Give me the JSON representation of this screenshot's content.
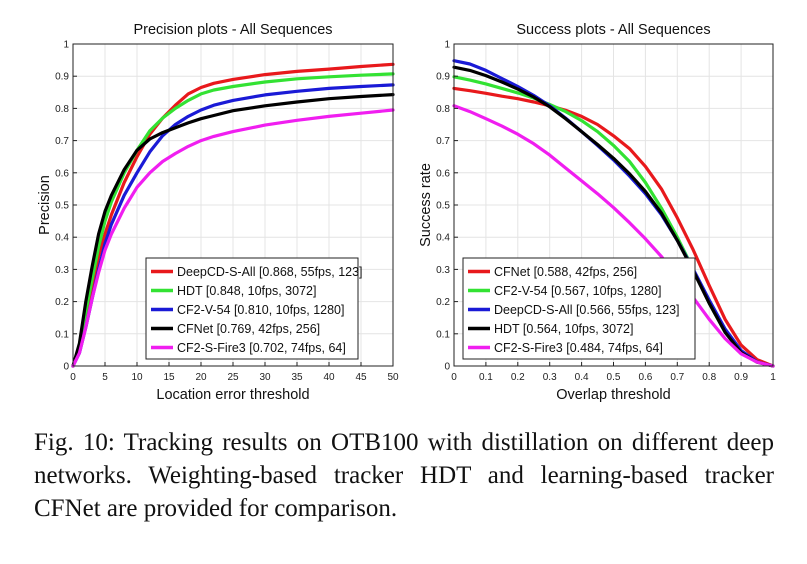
{
  "chart_data": [
    {
      "type": "line",
      "title": "Precision plots - All Sequences",
      "xlabel": "Location error threshold",
      "ylabel": "Precision",
      "xlim": [
        0,
        50
      ],
      "ylim": [
        0,
        1
      ],
      "xticks": [
        0,
        5,
        10,
        15,
        20,
        25,
        30,
        35,
        40,
        45,
        50
      ],
      "xtick_labels": [
        "0",
        "5",
        "10",
        "15",
        "20",
        "25",
        "30",
        "35",
        "40",
        "45",
        "50"
      ],
      "yticks": [
        0,
        0.1,
        0.2,
        0.3,
        0.4,
        0.5,
        0.6,
        0.7,
        0.8,
        0.9,
        1
      ],
      "ytick_labels": [
        "0",
        "0.1",
        "0.2",
        "0.3",
        "0.4",
        "0.5",
        "0.6",
        "0.7",
        "0.8",
        "0.9",
        "1"
      ],
      "grid": true,
      "legend_position": "bottom-right",
      "series": [
        {
          "name": "DeepCD-S-All [0.868, 55fps, 123]",
          "color": "#e8191c",
          "x": [
            0,
            1,
            2,
            3,
            4,
            5,
            6,
            8,
            10,
            12,
            14,
            16,
            18,
            20,
            22,
            25,
            30,
            35,
            40,
            45,
            50
          ],
          "y": [
            0,
            0.05,
            0.15,
            0.25,
            0.34,
            0.41,
            0.47,
            0.57,
            0.65,
            0.72,
            0.77,
            0.81,
            0.845,
            0.865,
            0.878,
            0.89,
            0.905,
            0.915,
            0.922,
            0.93,
            0.937
          ]
        },
        {
          "name": "HDT [0.848, 10fps, 3072]",
          "color": "#33e233",
          "x": [
            0,
            1,
            2,
            3,
            4,
            5,
            6,
            8,
            10,
            12,
            14,
            16,
            18,
            20,
            22,
            25,
            30,
            35,
            40,
            45,
            50
          ],
          "y": [
            0,
            0.06,
            0.17,
            0.27,
            0.37,
            0.45,
            0.51,
            0.6,
            0.67,
            0.73,
            0.77,
            0.8,
            0.825,
            0.845,
            0.857,
            0.868,
            0.882,
            0.892,
            0.898,
            0.903,
            0.907
          ]
        },
        {
          "name": "CF2-V-54 [0.810, 10fps, 1280]",
          "color": "#1a1ad6",
          "x": [
            0,
            1,
            2,
            3,
            4,
            5,
            6,
            8,
            10,
            12,
            14,
            16,
            18,
            20,
            22,
            25,
            30,
            35,
            40,
            45,
            50
          ],
          "y": [
            0,
            0.04,
            0.12,
            0.21,
            0.3,
            0.38,
            0.44,
            0.53,
            0.6,
            0.665,
            0.715,
            0.75,
            0.775,
            0.795,
            0.81,
            0.825,
            0.842,
            0.853,
            0.862,
            0.868,
            0.873
          ]
        },
        {
          "name": "CFNet [0.769, 42fps, 256]",
          "color": "#000000",
          "x": [
            0,
            1,
            2,
            3,
            4,
            5,
            6,
            8,
            10,
            12,
            14,
            16,
            18,
            20,
            22,
            25,
            30,
            35,
            40,
            45,
            50
          ],
          "y": [
            0,
            0.07,
            0.2,
            0.31,
            0.41,
            0.48,
            0.53,
            0.61,
            0.67,
            0.705,
            0.725,
            0.74,
            0.755,
            0.768,
            0.778,
            0.793,
            0.808,
            0.82,
            0.83,
            0.837,
            0.843
          ]
        },
        {
          "name": "CF2-S-Fire3 [0.702, 74fps, 64]",
          "color": "#f01ef0",
          "x": [
            0,
            1,
            2,
            3,
            4,
            5,
            6,
            8,
            10,
            12,
            14,
            16,
            18,
            20,
            22,
            25,
            30,
            35,
            40,
            45,
            50
          ],
          "y": [
            0,
            0.04,
            0.12,
            0.21,
            0.29,
            0.36,
            0.41,
            0.49,
            0.555,
            0.6,
            0.635,
            0.66,
            0.682,
            0.7,
            0.713,
            0.728,
            0.748,
            0.763,
            0.775,
            0.785,
            0.795
          ]
        }
      ]
    },
    {
      "type": "line",
      "title": "Success plots - All Sequences",
      "xlabel": "Overlap threshold",
      "ylabel": "Success rate",
      "xlim": [
        0,
        1
      ],
      "ylim": [
        0,
        1
      ],
      "xticks": [
        0,
        0.1,
        0.2,
        0.3,
        0.4,
        0.5,
        0.6,
        0.7,
        0.8,
        0.9,
        1
      ],
      "xtick_labels": [
        "0",
        "0.1",
        "0.2",
        "0.3",
        "0.4",
        "0.5",
        "0.6",
        "0.7",
        "0.8",
        "0.9",
        "1"
      ],
      "yticks": [
        0,
        0.1,
        0.2,
        0.3,
        0.4,
        0.5,
        0.6,
        0.7,
        0.8,
        0.9,
        1
      ],
      "ytick_labels": [
        "0",
        "0.1",
        "0.2",
        "0.3",
        "0.4",
        "0.5",
        "0.6",
        "0.7",
        "0.8",
        "0.9",
        "1"
      ],
      "grid": true,
      "legend_position": "bottom-left",
      "series": [
        {
          "name": "CFNet [0.588, 42fps, 256]",
          "color": "#e8191c",
          "x": [
            0,
            0.05,
            0.1,
            0.15,
            0.2,
            0.25,
            0.3,
            0.35,
            0.4,
            0.45,
            0.5,
            0.55,
            0.6,
            0.65,
            0.7,
            0.75,
            0.8,
            0.85,
            0.9,
            0.95,
            1
          ],
          "y": [
            0.862,
            0.855,
            0.847,
            0.838,
            0.83,
            0.82,
            0.808,
            0.794,
            0.775,
            0.75,
            0.715,
            0.675,
            0.62,
            0.55,
            0.46,
            0.36,
            0.25,
            0.145,
            0.065,
            0.02,
            0
          ]
        },
        {
          "name": "CF2-V-54 [0.567, 10fps, 1280]",
          "color": "#33e233",
          "x": [
            0,
            0.05,
            0.1,
            0.15,
            0.2,
            0.25,
            0.3,
            0.35,
            0.4,
            0.45,
            0.5,
            0.55,
            0.6,
            0.65,
            0.7,
            0.75,
            0.8,
            0.85,
            0.9,
            0.95,
            1
          ],
          "y": [
            0.898,
            0.888,
            0.876,
            0.862,
            0.848,
            0.832,
            0.812,
            0.79,
            0.762,
            0.728,
            0.685,
            0.635,
            0.57,
            0.49,
            0.4,
            0.3,
            0.195,
            0.105,
            0.042,
            0.012,
            0
          ]
        },
        {
          "name": "DeepCD-S-All [0.566, 55fps, 123]",
          "color": "#1a1ad6",
          "x": [
            0,
            0.05,
            0.1,
            0.15,
            0.2,
            0.25,
            0.3,
            0.35,
            0.4,
            0.45,
            0.5,
            0.55,
            0.6,
            0.65,
            0.7,
            0.75,
            0.8,
            0.85,
            0.9,
            0.95,
            1
          ],
          "y": [
            0.948,
            0.938,
            0.918,
            0.893,
            0.868,
            0.84,
            0.808,
            0.77,
            0.728,
            0.685,
            0.64,
            0.59,
            0.535,
            0.47,
            0.39,
            0.3,
            0.205,
            0.115,
            0.048,
            0.013,
            0
          ]
        },
        {
          "name": "HDT [0.564, 10fps, 3072]",
          "color": "#000000",
          "x": [
            0,
            0.05,
            0.1,
            0.15,
            0.2,
            0.25,
            0.3,
            0.35,
            0.4,
            0.45,
            0.5,
            0.55,
            0.6,
            0.65,
            0.7,
            0.75,
            0.8,
            0.85,
            0.9,
            0.95,
            1
          ],
          "y": [
            0.928,
            0.918,
            0.902,
            0.882,
            0.86,
            0.835,
            0.805,
            0.768,
            0.728,
            0.688,
            0.645,
            0.597,
            0.542,
            0.475,
            0.39,
            0.295,
            0.195,
            0.105,
            0.042,
            0.012,
            0
          ]
        },
        {
          "name": "CF2-S-Fire3 [0.484, 74fps, 64]",
          "color": "#f01ef0",
          "x": [
            0,
            0.05,
            0.1,
            0.15,
            0.2,
            0.25,
            0.3,
            0.35,
            0.4,
            0.45,
            0.5,
            0.55,
            0.6,
            0.65,
            0.7,
            0.75,
            0.8,
            0.85,
            0.9,
            0.95,
            1
          ],
          "y": [
            0.808,
            0.79,
            0.768,
            0.745,
            0.72,
            0.69,
            0.655,
            0.615,
            0.575,
            0.535,
            0.492,
            0.445,
            0.395,
            0.34,
            0.278,
            0.212,
            0.145,
            0.085,
            0.038,
            0.012,
            0
          ]
        }
      ]
    }
  ],
  "caption": "Fig. 10: Tracking results on OTB100 with distillation on different deep networks. Weighting-based tracker HDT and learning-based tracker CFNet are provided for comparison."
}
